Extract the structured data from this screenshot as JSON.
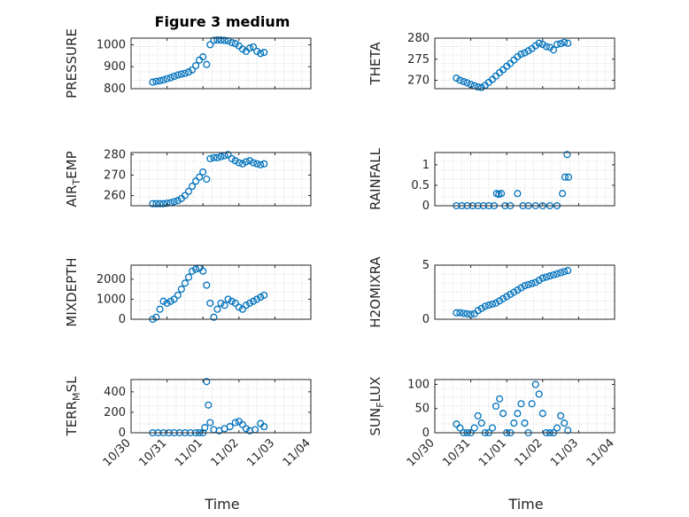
{
  "figure": {
    "title": "Figure 3 medium",
    "x_ticks": [
      "10/30",
      "10/31",
      "11/01",
      "11/02",
      "11/03",
      "11/04"
    ],
    "x_label": "Time"
  },
  "colors": {
    "marker": "#0072BD",
    "axis": "#262626",
    "grid": "#c8c8c8",
    "background": "#ffffff"
  },
  "chart_data": [
    {
      "type": "scatter",
      "ylabel": "PRESSURE",
      "ylim": [
        800,
        1030
      ],
      "yticks": [
        800,
        900,
        1000
      ],
      "grid": true,
      "x": [
        0.6,
        0.7,
        0.8,
        0.9,
        1.0,
        1.1,
        1.2,
        1.3,
        1.4,
        1.5,
        1.6,
        1.7,
        1.8,
        1.9,
        2.0,
        2.1,
        2.2,
        2.3,
        2.4,
        2.5,
        2.6,
        2.7,
        2.8,
        2.9,
        3.0,
        3.1,
        3.2,
        3.3,
        3.4,
        3.5,
        3.6,
        3.7
      ],
      "y": [
        830,
        833,
        836,
        840,
        845,
        850,
        856,
        862,
        866,
        870,
        876,
        885,
        905,
        930,
        945,
        910,
        1000,
        1020,
        1022,
        1021,
        1020,
        1018,
        1010,
        1005,
        995,
        980,
        970,
        985,
        990,
        970,
        960,
        965
      ]
    },
    {
      "type": "scatter",
      "ylabel": "THETA",
      "ylim": [
        268,
        280
      ],
      "yticks": [
        270,
        275,
        280
      ],
      "grid": true,
      "x": [
        0.6,
        0.7,
        0.8,
        0.9,
        1.0,
        1.1,
        1.2,
        1.3,
        1.4,
        1.5,
        1.6,
        1.7,
        1.8,
        1.9,
        2.0,
        2.1,
        2.2,
        2.3,
        2.4,
        2.5,
        2.6,
        2.7,
        2.8,
        2.9,
        3.0,
        3.1,
        3.2,
        3.3,
        3.4,
        3.5,
        3.6,
        3.7
      ],
      "y": [
        270.5,
        270,
        269.7,
        269.4,
        269.0,
        268.7,
        268.4,
        268.3,
        268.8,
        269.5,
        270.2,
        271,
        271.8,
        272.5,
        273.3,
        274,
        274.8,
        275.6,
        276.2,
        276.5,
        277,
        277.5,
        278.2,
        278.8,
        278.5,
        278,
        277.8,
        277.2,
        278.5,
        278.7,
        279,
        278.8
      ]
    },
    {
      "type": "scatter",
      "ylabel": "AIR_TEMP",
      "ylim": [
        255,
        281
      ],
      "yticks": [
        260,
        270,
        280
      ],
      "grid": true,
      "x": [
        0.6,
        0.7,
        0.8,
        0.9,
        1.0,
        1.1,
        1.2,
        1.3,
        1.4,
        1.5,
        1.6,
        1.7,
        1.8,
        1.9,
        2.0,
        2.1,
        2.2,
        2.3,
        2.4,
        2.5,
        2.6,
        2.7,
        2.8,
        2.9,
        3.0,
        3.1,
        3.2,
        3.3,
        3.4,
        3.5,
        3.6,
        3.7
      ],
      "y": [
        256,
        256,
        256,
        256,
        256.2,
        256.5,
        257,
        257.5,
        258.5,
        260,
        262,
        264.5,
        267,
        269,
        271.5,
        268,
        278,
        278.5,
        278.5,
        279,
        279.5,
        280,
        278,
        277,
        276,
        275.5,
        276.5,
        277,
        276,
        275.5,
        275,
        275.5
      ]
    },
    {
      "type": "scatter",
      "ylabel": "RAINFALL",
      "ylim": [
        0,
        1.3
      ],
      "yticks": [
        0,
        0.5,
        1
      ],
      "grid": true,
      "x": [
        0.6,
        0.75,
        0.9,
        1.05,
        1.2,
        1.35,
        1.5,
        1.65,
        1.72,
        1.78,
        1.85,
        1.95,
        2.1,
        2.3,
        2.45,
        2.6,
        2.8,
        3.0,
        3.2,
        3.4,
        3.55,
        3.62,
        3.68,
        3.72
      ],
      "y": [
        0,
        0,
        0,
        0,
        0,
        0,
        0,
        0,
        0.3,
        0.28,
        0.3,
        0,
        0,
        0.3,
        0,
        0,
        0,
        0,
        0,
        0,
        0.3,
        0.7,
        1.25,
        0.7
      ]
    },
    {
      "type": "scatter",
      "ylabel": "MIXDEPTH",
      "ylim": [
        0,
        2700
      ],
      "yticks": [
        0,
        1000,
        2000
      ],
      "grid": true,
      "x": [
        0.6,
        0.7,
        0.8,
        0.9,
        1.0,
        1.1,
        1.2,
        1.3,
        1.4,
        1.5,
        1.6,
        1.7,
        1.8,
        1.9,
        2.0,
        2.1,
        2.2,
        2.3,
        2.4,
        2.5,
        2.6,
        2.7,
        2.8,
        2.9,
        3.0,
        3.1,
        3.2,
        3.3,
        3.4,
        3.5,
        3.6,
        3.7
      ],
      "y": [
        0,
        100,
        500,
        900,
        800,
        900,
        1000,
        1200,
        1500,
        1800,
        2100,
        2400,
        2500,
        2550,
        2400,
        1700,
        800,
        100,
        500,
        800,
        700,
        1000,
        900,
        800,
        600,
        500,
        700,
        800,
        900,
        1000,
        1100,
        1200
      ]
    },
    {
      "type": "scatter",
      "ylabel": "H2OMIXRA",
      "ylim": [
        0,
        5
      ],
      "yticks": [
        0,
        5
      ],
      "grid": true,
      "x": [
        0.6,
        0.7,
        0.8,
        0.9,
        1.0,
        1.1,
        1.2,
        1.3,
        1.4,
        1.5,
        1.6,
        1.7,
        1.8,
        1.9,
        2.0,
        2.1,
        2.2,
        2.3,
        2.4,
        2.5,
        2.6,
        2.7,
        2.8,
        2.9,
        3.0,
        3.1,
        3.2,
        3.3,
        3.4,
        3.5,
        3.6,
        3.7
      ],
      "y": [
        0.6,
        0.6,
        0.55,
        0.5,
        0.45,
        0.5,
        0.8,
        1.0,
        1.2,
        1.3,
        1.4,
        1.5,
        1.7,
        1.9,
        2.1,
        2.3,
        2.5,
        2.7,
        2.9,
        3.1,
        3.2,
        3.3,
        3.4,
        3.6,
        3.8,
        3.9,
        4.0,
        4.1,
        4.2,
        4.3,
        4.4,
        4.5
      ]
    },
    {
      "type": "scatter",
      "ylabel": "TERR_MSL",
      "ylim": [
        0,
        520
      ],
      "yticks": [
        0,
        200,
        400
      ],
      "grid": true,
      "x": [
        0.6,
        0.75,
        0.9,
        1.05,
        1.2,
        1.35,
        1.5,
        1.65,
        1.8,
        1.9,
        2.0,
        2.05,
        2.1,
        2.15,
        2.2,
        2.3,
        2.45,
        2.6,
        2.75,
        2.9,
        3.0,
        3.1,
        3.2,
        3.3,
        3.45,
        3.6,
        3.7
      ],
      "y": [
        0,
        0,
        0,
        0,
        0,
        0,
        0,
        0,
        0,
        0,
        0,
        50,
        500,
        270,
        100,
        30,
        20,
        40,
        60,
        100,
        110,
        80,
        40,
        20,
        30,
        90,
        60
      ]
    },
    {
      "type": "scatter",
      "ylabel": "SUN_FLUX",
      "ylim": [
        0,
        110
      ],
      "yticks": [
        0,
        50,
        100
      ],
      "grid": true,
      "x": [
        0.6,
        0.7,
        0.8,
        0.9,
        1.0,
        1.1,
        1.2,
        1.3,
        1.4,
        1.5,
        1.6,
        1.7,
        1.8,
        1.9,
        2.0,
        2.1,
        2.2,
        2.3,
        2.4,
        2.5,
        2.6,
        2.7,
        2.8,
        2.9,
        3.0,
        3.1,
        3.2,
        3.3,
        3.4,
        3.5,
        3.6,
        3.7
      ],
      "y": [
        18,
        10,
        0,
        0,
        0,
        10,
        35,
        20,
        0,
        0,
        10,
        55,
        70,
        40,
        0,
        0,
        20,
        40,
        60,
        20,
        0,
        60,
        100,
        80,
        40,
        0,
        0,
        0,
        10,
        35,
        20,
        5
      ]
    }
  ]
}
